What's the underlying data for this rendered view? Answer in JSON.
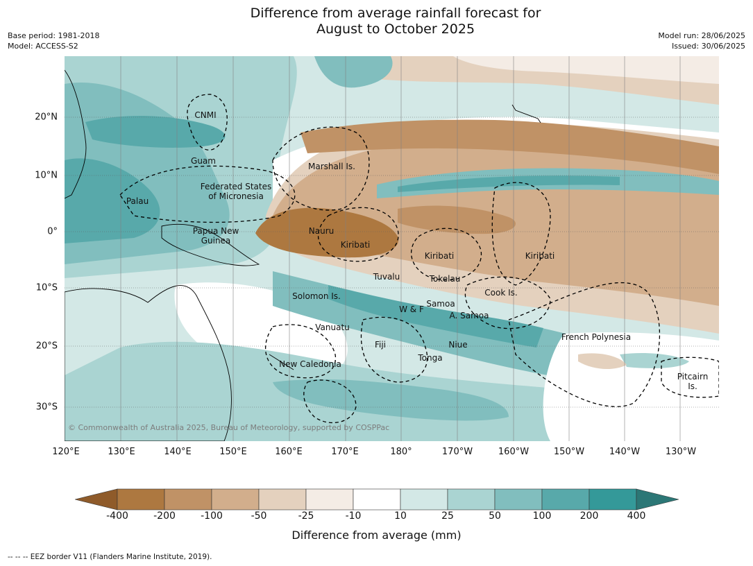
{
  "title": {
    "line1": "Difference from average rainfall forecast for",
    "line2": "August to October 2025"
  },
  "meta": {
    "base_period": "Base period: 1981-2018",
    "model": "Model: ACCESS-S2",
    "model_run": "Model run: 28/06/2025",
    "issued": "Issued: 30/06/2025"
  },
  "map": {
    "lat_labels": [
      "20°N",
      "10°N",
      "0°",
      "10°S",
      "20°S",
      "30°S"
    ],
    "lon_labels": [
      "120°E",
      "130°E",
      "140°E",
      "150°E",
      "160°E",
      "170°E",
      "180°",
      "170°W",
      "160°W",
      "150°W",
      "140°W",
      "130°W"
    ],
    "places": {
      "cnmi": "CNMI",
      "guam": "Guam",
      "marshall": "Marshall Is.",
      "fsm": "Federated States\nof Micronesia",
      "palau": "Palau",
      "png": "Papua New\nGuinea",
      "nauru": "Nauru",
      "kiribati_w": "Kiribati",
      "kiribati_c": "Kiribati",
      "kiribati_e": "Kiribati",
      "tuvalu": "Tuvalu",
      "tokelau": "Tokelau",
      "cook": "Cook Is.",
      "solomon": "Solomon Is.",
      "wf": "W & F",
      "samoa": "Samoa",
      "asamoa": "A. Samoa",
      "vanuatu": "Vanuatu",
      "fiji": "Fiji",
      "niue": "Niue",
      "tonga": "Tonga",
      "frpoly": "French Polynesia",
      "newcal": "New Caledonia",
      "pitcairn": "Pitcairn\nIs."
    },
    "copyright": "© Commonwealth of Australia 2025, Bureau of Meteorology, supported by COSPPac"
  },
  "colorbar": {
    "ticks": [
      "-400",
      "-200",
      "-100",
      "-50",
      "-25",
      "-10",
      "10",
      "25",
      "50",
      "100",
      "200",
      "400"
    ],
    "colors": [
      "#8f5b2a",
      "#ad7840",
      "#c09266",
      "#d2ae8c",
      "#e4d1be",
      "#f4ece5",
      "#ffffff",
      "#d3e8e6",
      "#aad4d2",
      "#81bebe",
      "#58a9aa",
      "#349999",
      "#2c7776"
    ],
    "title": "Difference from average (mm)"
  },
  "footer": "-- -- -- EEZ border V11 (Flanders Marine Institute, 2019)."
}
